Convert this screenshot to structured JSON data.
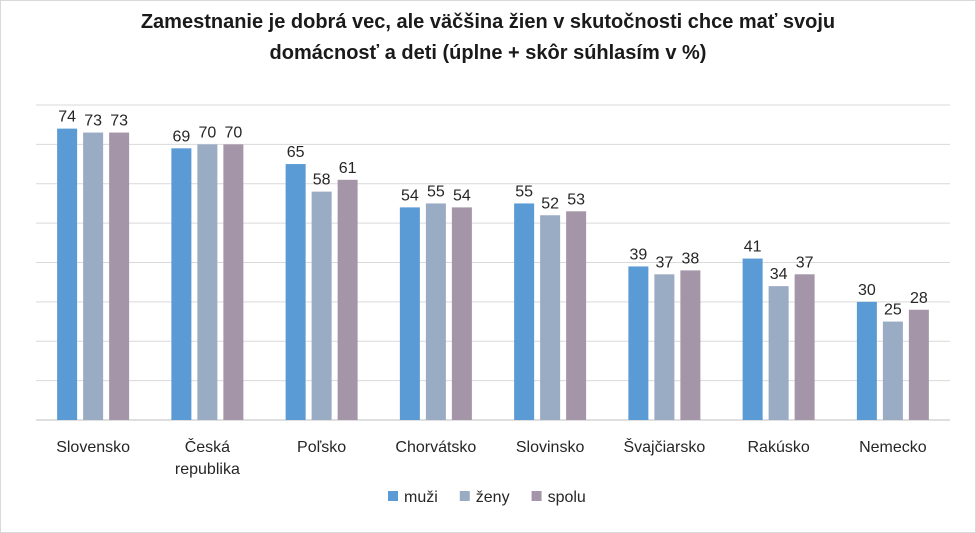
{
  "chart_data": {
    "type": "bar",
    "title_lines": [
      "Zamestnanie je dobrá vec, ale väčšina žien v skutočnosti chce mať svoju",
      "domácnosť a deti  (úplne + skôr súhlasím v %)"
    ],
    "categories": [
      [
        "Slovensko"
      ],
      [
        "Česká",
        "republika"
      ],
      [
        "Poľsko"
      ],
      [
        "Chorvátsko"
      ],
      [
        "Slovinsko"
      ],
      [
        "Švajčiarsko"
      ],
      [
        "Rakúsko"
      ],
      [
        "Nemecko"
      ]
    ],
    "series": [
      {
        "name": "muži",
        "color": "#5b9bd5",
        "values": [
          74,
          69,
          65,
          54,
          55,
          39,
          41,
          30
        ]
      },
      {
        "name": "ženy",
        "color": "#9aabc4",
        "values": [
          73,
          70,
          58,
          55,
          52,
          37,
          34,
          25
        ]
      },
      {
        "name": "spolu",
        "color": "#a496a8",
        "values": [
          73,
          70,
          61,
          54,
          53,
          38,
          37,
          28
        ]
      }
    ],
    "ylim": [
      0,
      80
    ],
    "ytick_step": 10,
    "grid": true,
    "legend_position": "bottom"
  }
}
